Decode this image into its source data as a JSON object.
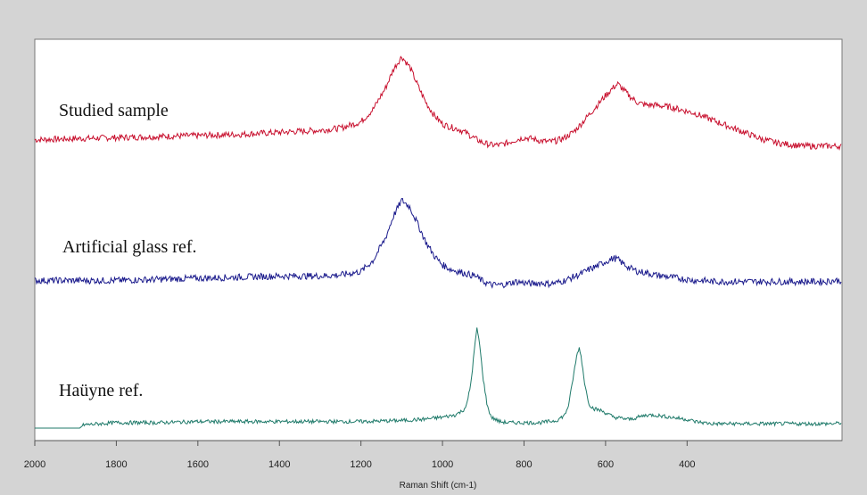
{
  "chart_data": {
    "type": "line",
    "title": "",
    "xlabel": "Raman Shift (cm-1)",
    "ylabel": "",
    "xlim": [
      2000,
      20
    ],
    "x_reversed": true,
    "xticks": [
      2000,
      1800,
      1600,
      1400,
      1200,
      1000,
      800,
      600,
      400
    ],
    "grid": false,
    "series": [
      {
        "name": "Studied sample",
        "color": "#c8102e",
        "x": [
          2000,
          1900,
          1800,
          1700,
          1600,
          1500,
          1400,
          1300,
          1250,
          1200,
          1170,
          1140,
          1120,
          1100,
          1080,
          1060,
          1040,
          1020,
          1000,
          980,
          960,
          940,
          920,
          900,
          880,
          860,
          840,
          820,
          800,
          780,
          760,
          740,
          720,
          700,
          680,
          660,
          640,
          620,
          600,
          580,
          570,
          560,
          540,
          520,
          500,
          480,
          460,
          440,
          420,
          400,
          380,
          360,
          340,
          320,
          300,
          280,
          260,
          240,
          220,
          200,
          180,
          160,
          140,
          120,
          100,
          80,
          60,
          40,
          20
        ],
        "y": [
          0.13,
          0.14,
          0.15,
          0.16,
          0.17,
          0.18,
          0.2,
          0.22,
          0.24,
          0.3,
          0.42,
          0.62,
          0.8,
          0.92,
          0.82,
          0.64,
          0.48,
          0.36,
          0.28,
          0.25,
          0.23,
          0.19,
          0.14,
          0.1,
          0.08,
          0.08,
          0.1,
          0.13,
          0.15,
          0.14,
          0.12,
          0.11,
          0.12,
          0.15,
          0.2,
          0.28,
          0.37,
          0.46,
          0.55,
          0.63,
          0.66,
          0.62,
          0.54,
          0.48,
          0.46,
          0.46,
          0.45,
          0.44,
          0.42,
          0.4,
          0.38,
          0.35,
          0.32,
          0.29,
          0.26,
          0.23,
          0.2,
          0.17,
          0.14,
          0.12,
          0.1,
          0.09,
          0.08,
          0.07,
          0.07,
          0.07,
          0.07,
          0.07,
          0.07
        ]
      },
      {
        "name": "Artificial glass ref.",
        "color": "#1a1a8c",
        "x": [
          2000,
          1900,
          1800,
          1700,
          1600,
          1500,
          1400,
          1300,
          1250,
          1200,
          1170,
          1140,
          1120,
          1100,
          1080,
          1060,
          1040,
          1020,
          1000,
          980,
          960,
          940,
          920,
          900,
          880,
          860,
          840,
          820,
          800,
          780,
          760,
          740,
          720,
          700,
          680,
          660,
          640,
          620,
          600,
          580,
          570,
          560,
          540,
          520,
          500,
          480,
          460,
          440,
          420,
          400,
          380,
          360,
          340,
          320,
          300,
          280,
          260,
          240,
          220,
          200,
          180,
          160,
          140,
          120,
          100,
          80,
          60,
          40,
          20
        ],
        "y": [
          0.06,
          0.06,
          0.06,
          0.07,
          0.08,
          0.09,
          0.1,
          0.1,
          0.11,
          0.14,
          0.24,
          0.44,
          0.64,
          0.78,
          0.72,
          0.56,
          0.4,
          0.28,
          0.2,
          0.16,
          0.14,
          0.12,
          0.1,
          0.05,
          0.02,
          0.02,
          0.03,
          0.05,
          0.04,
          0.03,
          0.04,
          0.03,
          0.04,
          0.06,
          0.09,
          0.12,
          0.16,
          0.19,
          0.23,
          0.26,
          0.25,
          0.22,
          0.17,
          0.14,
          0.13,
          0.11,
          0.1,
          0.09,
          0.08,
          0.07,
          0.06,
          0.06,
          0.05,
          0.05,
          0.05,
          0.05,
          0.05,
          0.05,
          0.05,
          0.05,
          0.05,
          0.05,
          0.05,
          0.05,
          0.05,
          0.05,
          0.05,
          0.06,
          0.06
        ]
      },
      {
        "name": "Haüyne ref.",
        "color": "#1f7a6a",
        "x": [
          2000,
          1890,
          1880,
          1800,
          1700,
          1600,
          1500,
          1400,
          1300,
          1200,
          1100,
          1050,
          1000,
          970,
          960,
          950,
          940,
          930,
          920,
          915,
          910,
          900,
          890,
          880,
          860,
          840,
          820,
          800,
          780,
          760,
          740,
          720,
          700,
          690,
          680,
          670,
          665,
          660,
          650,
          640,
          630,
          620,
          610,
          600,
          580,
          560,
          540,
          520,
          500,
          480,
          460,
          440,
          420,
          400,
          380,
          360,
          340,
          320,
          300,
          280,
          260,
          240,
          220,
          200,
          180,
          160,
          140,
          120,
          100,
          80,
          60,
          40,
          20
        ],
        "y": [
          0.0,
          0.0,
          0.03,
          0.05,
          0.05,
          0.06,
          0.06,
          0.06,
          0.06,
          0.06,
          0.07,
          0.08,
          0.1,
          0.12,
          0.14,
          0.16,
          0.22,
          0.42,
          0.78,
          0.92,
          0.8,
          0.45,
          0.2,
          0.1,
          0.06,
          0.05,
          0.05,
          0.05,
          0.05,
          0.05,
          0.06,
          0.07,
          0.12,
          0.22,
          0.45,
          0.68,
          0.74,
          0.66,
          0.38,
          0.22,
          0.18,
          0.17,
          0.16,
          0.14,
          0.1,
          0.09,
          0.08,
          0.1,
          0.12,
          0.12,
          0.11,
          0.1,
          0.09,
          0.08,
          0.06,
          0.05,
          0.04,
          0.04,
          0.04,
          0.04,
          0.04,
          0.04,
          0.04,
          0.04,
          0.04,
          0.04,
          0.04,
          0.04,
          0.04,
          0.04,
          0.04,
          0.04,
          0.05
        ]
      }
    ],
    "series_labels": [
      "Studied sample",
      "Artificial glass ref.",
      "Haüyne ref."
    ]
  }
}
